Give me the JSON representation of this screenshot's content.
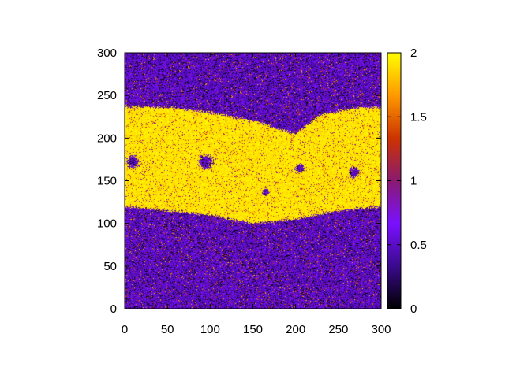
{
  "chart_data": {
    "type": "heatmap",
    "title": "",
    "xlabel": "",
    "ylabel": "",
    "xlim": [
      0,
      300
    ],
    "ylim": [
      0,
      300
    ],
    "x_ticks": [
      0,
      50,
      100,
      150,
      200,
      250,
      300
    ],
    "y_ticks": [
      0,
      50,
      100,
      150,
      200,
      250,
      300
    ],
    "colorbar": {
      "range": [
        0,
        2
      ],
      "ticks": [
        "0",
        "0.5",
        "1",
        "1.5",
        "2"
      ],
      "colormap": "black-purple-red-yellow",
      "stops": [
        "#000000",
        "#3a0a8c",
        "#7a10ff",
        "#8a1a70",
        "#cc3300",
        "#ff9900",
        "#ffff00"
      ]
    },
    "field": {
      "description_values": "background level ~0.6 with noise; band of level ~2 between y≈100 and y≈240",
      "low_level": 0.6,
      "high_level": 2.0,
      "band_lower_edge": [
        {
          "x": 0,
          "y": 120
        },
        {
          "x": 50,
          "y": 115
        },
        {
          "x": 100,
          "y": 110
        },
        {
          "x": 150,
          "y": 100
        },
        {
          "x": 200,
          "y": 105
        },
        {
          "x": 250,
          "y": 115
        },
        {
          "x": 300,
          "y": 120
        }
      ],
      "band_upper_edge": [
        {
          "x": 0,
          "y": 237
        },
        {
          "x": 50,
          "y": 236
        },
        {
          "x": 100,
          "y": 230
        },
        {
          "x": 150,
          "y": 220
        },
        {
          "x": 200,
          "y": 205
        },
        {
          "x": 230,
          "y": 228
        },
        {
          "x": 270,
          "y": 235
        },
        {
          "x": 300,
          "y": 236
        }
      ],
      "holes": [
        {
          "x": 95,
          "y": 172,
          "r": 8
        },
        {
          "x": 10,
          "y": 172,
          "r": 7
        },
        {
          "x": 205,
          "y": 164,
          "r": 5
        },
        {
          "x": 268,
          "y": 160,
          "r": 6
        },
        {
          "x": 165,
          "y": 137,
          "r": 4
        }
      ]
    }
  }
}
